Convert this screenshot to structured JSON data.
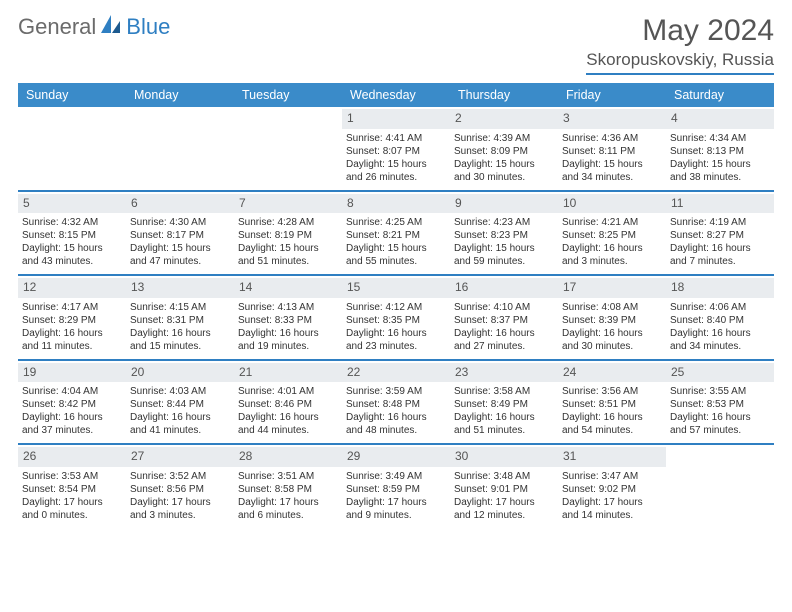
{
  "logo": {
    "text1": "General",
    "text2": "Blue"
  },
  "header": {
    "title": "May 2024",
    "location": "Skoropuskovskiy, Russia"
  },
  "dow": [
    "Sunday",
    "Monday",
    "Tuesday",
    "Wednesday",
    "Thursday",
    "Friday",
    "Saturday"
  ],
  "colors": {
    "accent": "#3a8bc9",
    "rule": "#2f7fc2",
    "day_bg": "#e9ecef",
    "text": "#333333"
  },
  "weeks": [
    [
      {
        "n": "",
        "sr": "",
        "ss": "",
        "dl": ""
      },
      {
        "n": "",
        "sr": "",
        "ss": "",
        "dl": ""
      },
      {
        "n": "",
        "sr": "",
        "ss": "",
        "dl": ""
      },
      {
        "n": "1",
        "sr": "Sunrise: 4:41 AM",
        "ss": "Sunset: 8:07 PM",
        "dl": "Daylight: 15 hours and 26 minutes."
      },
      {
        "n": "2",
        "sr": "Sunrise: 4:39 AM",
        "ss": "Sunset: 8:09 PM",
        "dl": "Daylight: 15 hours and 30 minutes."
      },
      {
        "n": "3",
        "sr": "Sunrise: 4:36 AM",
        "ss": "Sunset: 8:11 PM",
        "dl": "Daylight: 15 hours and 34 minutes."
      },
      {
        "n": "4",
        "sr": "Sunrise: 4:34 AM",
        "ss": "Sunset: 8:13 PM",
        "dl": "Daylight: 15 hours and 38 minutes."
      }
    ],
    [
      {
        "n": "5",
        "sr": "Sunrise: 4:32 AM",
        "ss": "Sunset: 8:15 PM",
        "dl": "Daylight: 15 hours and 43 minutes."
      },
      {
        "n": "6",
        "sr": "Sunrise: 4:30 AM",
        "ss": "Sunset: 8:17 PM",
        "dl": "Daylight: 15 hours and 47 minutes."
      },
      {
        "n": "7",
        "sr": "Sunrise: 4:28 AM",
        "ss": "Sunset: 8:19 PM",
        "dl": "Daylight: 15 hours and 51 minutes."
      },
      {
        "n": "8",
        "sr": "Sunrise: 4:25 AM",
        "ss": "Sunset: 8:21 PM",
        "dl": "Daylight: 15 hours and 55 minutes."
      },
      {
        "n": "9",
        "sr": "Sunrise: 4:23 AM",
        "ss": "Sunset: 8:23 PM",
        "dl": "Daylight: 15 hours and 59 minutes."
      },
      {
        "n": "10",
        "sr": "Sunrise: 4:21 AM",
        "ss": "Sunset: 8:25 PM",
        "dl": "Daylight: 16 hours and 3 minutes."
      },
      {
        "n": "11",
        "sr": "Sunrise: 4:19 AM",
        "ss": "Sunset: 8:27 PM",
        "dl": "Daylight: 16 hours and 7 minutes."
      }
    ],
    [
      {
        "n": "12",
        "sr": "Sunrise: 4:17 AM",
        "ss": "Sunset: 8:29 PM",
        "dl": "Daylight: 16 hours and 11 minutes."
      },
      {
        "n": "13",
        "sr": "Sunrise: 4:15 AM",
        "ss": "Sunset: 8:31 PM",
        "dl": "Daylight: 16 hours and 15 minutes."
      },
      {
        "n": "14",
        "sr": "Sunrise: 4:13 AM",
        "ss": "Sunset: 8:33 PM",
        "dl": "Daylight: 16 hours and 19 minutes."
      },
      {
        "n": "15",
        "sr": "Sunrise: 4:12 AM",
        "ss": "Sunset: 8:35 PM",
        "dl": "Daylight: 16 hours and 23 minutes."
      },
      {
        "n": "16",
        "sr": "Sunrise: 4:10 AM",
        "ss": "Sunset: 8:37 PM",
        "dl": "Daylight: 16 hours and 27 minutes."
      },
      {
        "n": "17",
        "sr": "Sunrise: 4:08 AM",
        "ss": "Sunset: 8:39 PM",
        "dl": "Daylight: 16 hours and 30 minutes."
      },
      {
        "n": "18",
        "sr": "Sunrise: 4:06 AM",
        "ss": "Sunset: 8:40 PM",
        "dl": "Daylight: 16 hours and 34 minutes."
      }
    ],
    [
      {
        "n": "19",
        "sr": "Sunrise: 4:04 AM",
        "ss": "Sunset: 8:42 PM",
        "dl": "Daylight: 16 hours and 37 minutes."
      },
      {
        "n": "20",
        "sr": "Sunrise: 4:03 AM",
        "ss": "Sunset: 8:44 PM",
        "dl": "Daylight: 16 hours and 41 minutes."
      },
      {
        "n": "21",
        "sr": "Sunrise: 4:01 AM",
        "ss": "Sunset: 8:46 PM",
        "dl": "Daylight: 16 hours and 44 minutes."
      },
      {
        "n": "22",
        "sr": "Sunrise: 3:59 AM",
        "ss": "Sunset: 8:48 PM",
        "dl": "Daylight: 16 hours and 48 minutes."
      },
      {
        "n": "23",
        "sr": "Sunrise: 3:58 AM",
        "ss": "Sunset: 8:49 PM",
        "dl": "Daylight: 16 hours and 51 minutes."
      },
      {
        "n": "24",
        "sr": "Sunrise: 3:56 AM",
        "ss": "Sunset: 8:51 PM",
        "dl": "Daylight: 16 hours and 54 minutes."
      },
      {
        "n": "25",
        "sr": "Sunrise: 3:55 AM",
        "ss": "Sunset: 8:53 PM",
        "dl": "Daylight: 16 hours and 57 minutes."
      }
    ],
    [
      {
        "n": "26",
        "sr": "Sunrise: 3:53 AM",
        "ss": "Sunset: 8:54 PM",
        "dl": "Daylight: 17 hours and 0 minutes."
      },
      {
        "n": "27",
        "sr": "Sunrise: 3:52 AM",
        "ss": "Sunset: 8:56 PM",
        "dl": "Daylight: 17 hours and 3 minutes."
      },
      {
        "n": "28",
        "sr": "Sunrise: 3:51 AM",
        "ss": "Sunset: 8:58 PM",
        "dl": "Daylight: 17 hours and 6 minutes."
      },
      {
        "n": "29",
        "sr": "Sunrise: 3:49 AM",
        "ss": "Sunset: 8:59 PM",
        "dl": "Daylight: 17 hours and 9 minutes."
      },
      {
        "n": "30",
        "sr": "Sunrise: 3:48 AM",
        "ss": "Sunset: 9:01 PM",
        "dl": "Daylight: 17 hours and 12 minutes."
      },
      {
        "n": "31",
        "sr": "Sunrise: 3:47 AM",
        "ss": "Sunset: 9:02 PM",
        "dl": "Daylight: 17 hours and 14 minutes."
      },
      {
        "n": "",
        "sr": "",
        "ss": "",
        "dl": ""
      }
    ]
  ]
}
